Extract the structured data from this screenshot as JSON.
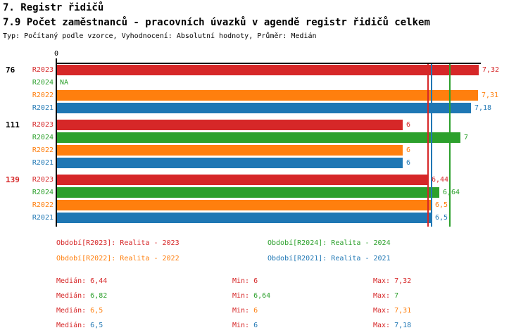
{
  "page": {
    "title": "7. Registr řidičů",
    "subtitle": "7.9 Počet zaměstnanců - pracovních úvazků v agendě registr řidičů celkem",
    "meta": "Typ: Počítaný podle vzorce, Vyhodnocení: Absolutní hodnoty, Průměr: Medián"
  },
  "colors": {
    "R2023": "#d62728",
    "R2024": "#2ca02c",
    "R2022": "#ff7f0e",
    "R2021": "#1f77b4",
    "axis": "#000000",
    "stat_label": "#d62728",
    "group_label_default": "#000000",
    "group_label_highlight": "#d62728"
  },
  "chart_data": {
    "type": "bar",
    "orientation": "horizontal",
    "title": "7.9 Počet zaměstnanců - pracovních úvazků v agendě registr řidičů celkem",
    "x_axis": {
      "tick_labels": [
        "0"
      ],
      "min": 0,
      "max": 7.32,
      "grid": false
    },
    "series_order": [
      "R2023",
      "R2024",
      "R2022",
      "R2021"
    ],
    "groups": [
      {
        "label": "76",
        "highlighted": false,
        "bars": [
          {
            "series": "R2023",
            "value": 7.32,
            "value_label": "7,32"
          },
          {
            "series": "R2024",
            "value": null,
            "value_label": "NA"
          },
          {
            "series": "R2022",
            "value": 7.31,
            "value_label": "7,31"
          },
          {
            "series": "R2021",
            "value": 7.18,
            "value_label": "7,18"
          }
        ]
      },
      {
        "label": "111",
        "highlighted": false,
        "bars": [
          {
            "series": "R2023",
            "value": 6,
            "value_label": "6"
          },
          {
            "series": "R2024",
            "value": 7,
            "value_label": "7"
          },
          {
            "series": "R2022",
            "value": 6,
            "value_label": "6"
          },
          {
            "series": "R2021",
            "value": 6,
            "value_label": "6"
          }
        ]
      },
      {
        "label": "139",
        "highlighted": true,
        "bars": [
          {
            "series": "R2023",
            "value": 6.44,
            "value_label": "6,44"
          },
          {
            "series": "R2024",
            "value": 6.64,
            "value_label": "6,64"
          },
          {
            "series": "R2022",
            "value": 6.5,
            "value_label": "6,5"
          },
          {
            "series": "R2021",
            "value": 6.5,
            "value_label": "6,5"
          }
        ]
      }
    ],
    "median_lines": [
      {
        "series": "R2023",
        "value": 6.44
      },
      {
        "series": "R2022",
        "value": 6.5
      },
      {
        "series": "R2021",
        "value": 6.5
      },
      {
        "series": "R2024",
        "value": 6.82
      }
    ],
    "legend": [
      {
        "series": "R2023",
        "label": "Období[R2023]: Realita - 2023",
        "col": 0,
        "row": 0
      },
      {
        "series": "R2024",
        "label": "Období[R2024]: Realita - 2024",
        "col": 1,
        "row": 0
      },
      {
        "series": "R2022",
        "label": "Období[R2022]: Realita - 2022",
        "col": 0,
        "row": 1
      },
      {
        "series": "R2021",
        "label": "Období[R2021]: Realita - 2021",
        "col": 1,
        "row": 1
      }
    ],
    "stats": {
      "columns": [
        {
          "key": "median",
          "label": "Medián: "
        },
        {
          "key": "min",
          "label": "Min: "
        },
        {
          "key": "max",
          "label": "Max: "
        }
      ],
      "rows": [
        {
          "series": "R2023",
          "median": "6,44",
          "min": "6",
          "max": "7,32"
        },
        {
          "series": "R2024",
          "median": "6,82",
          "min": "6,64",
          "max": "7"
        },
        {
          "series": "R2022",
          "median": "6,5",
          "min": "6",
          "max": "7,31"
        },
        {
          "series": "R2021",
          "median": "6,5",
          "min": "6",
          "max": "7,18"
        }
      ]
    }
  }
}
